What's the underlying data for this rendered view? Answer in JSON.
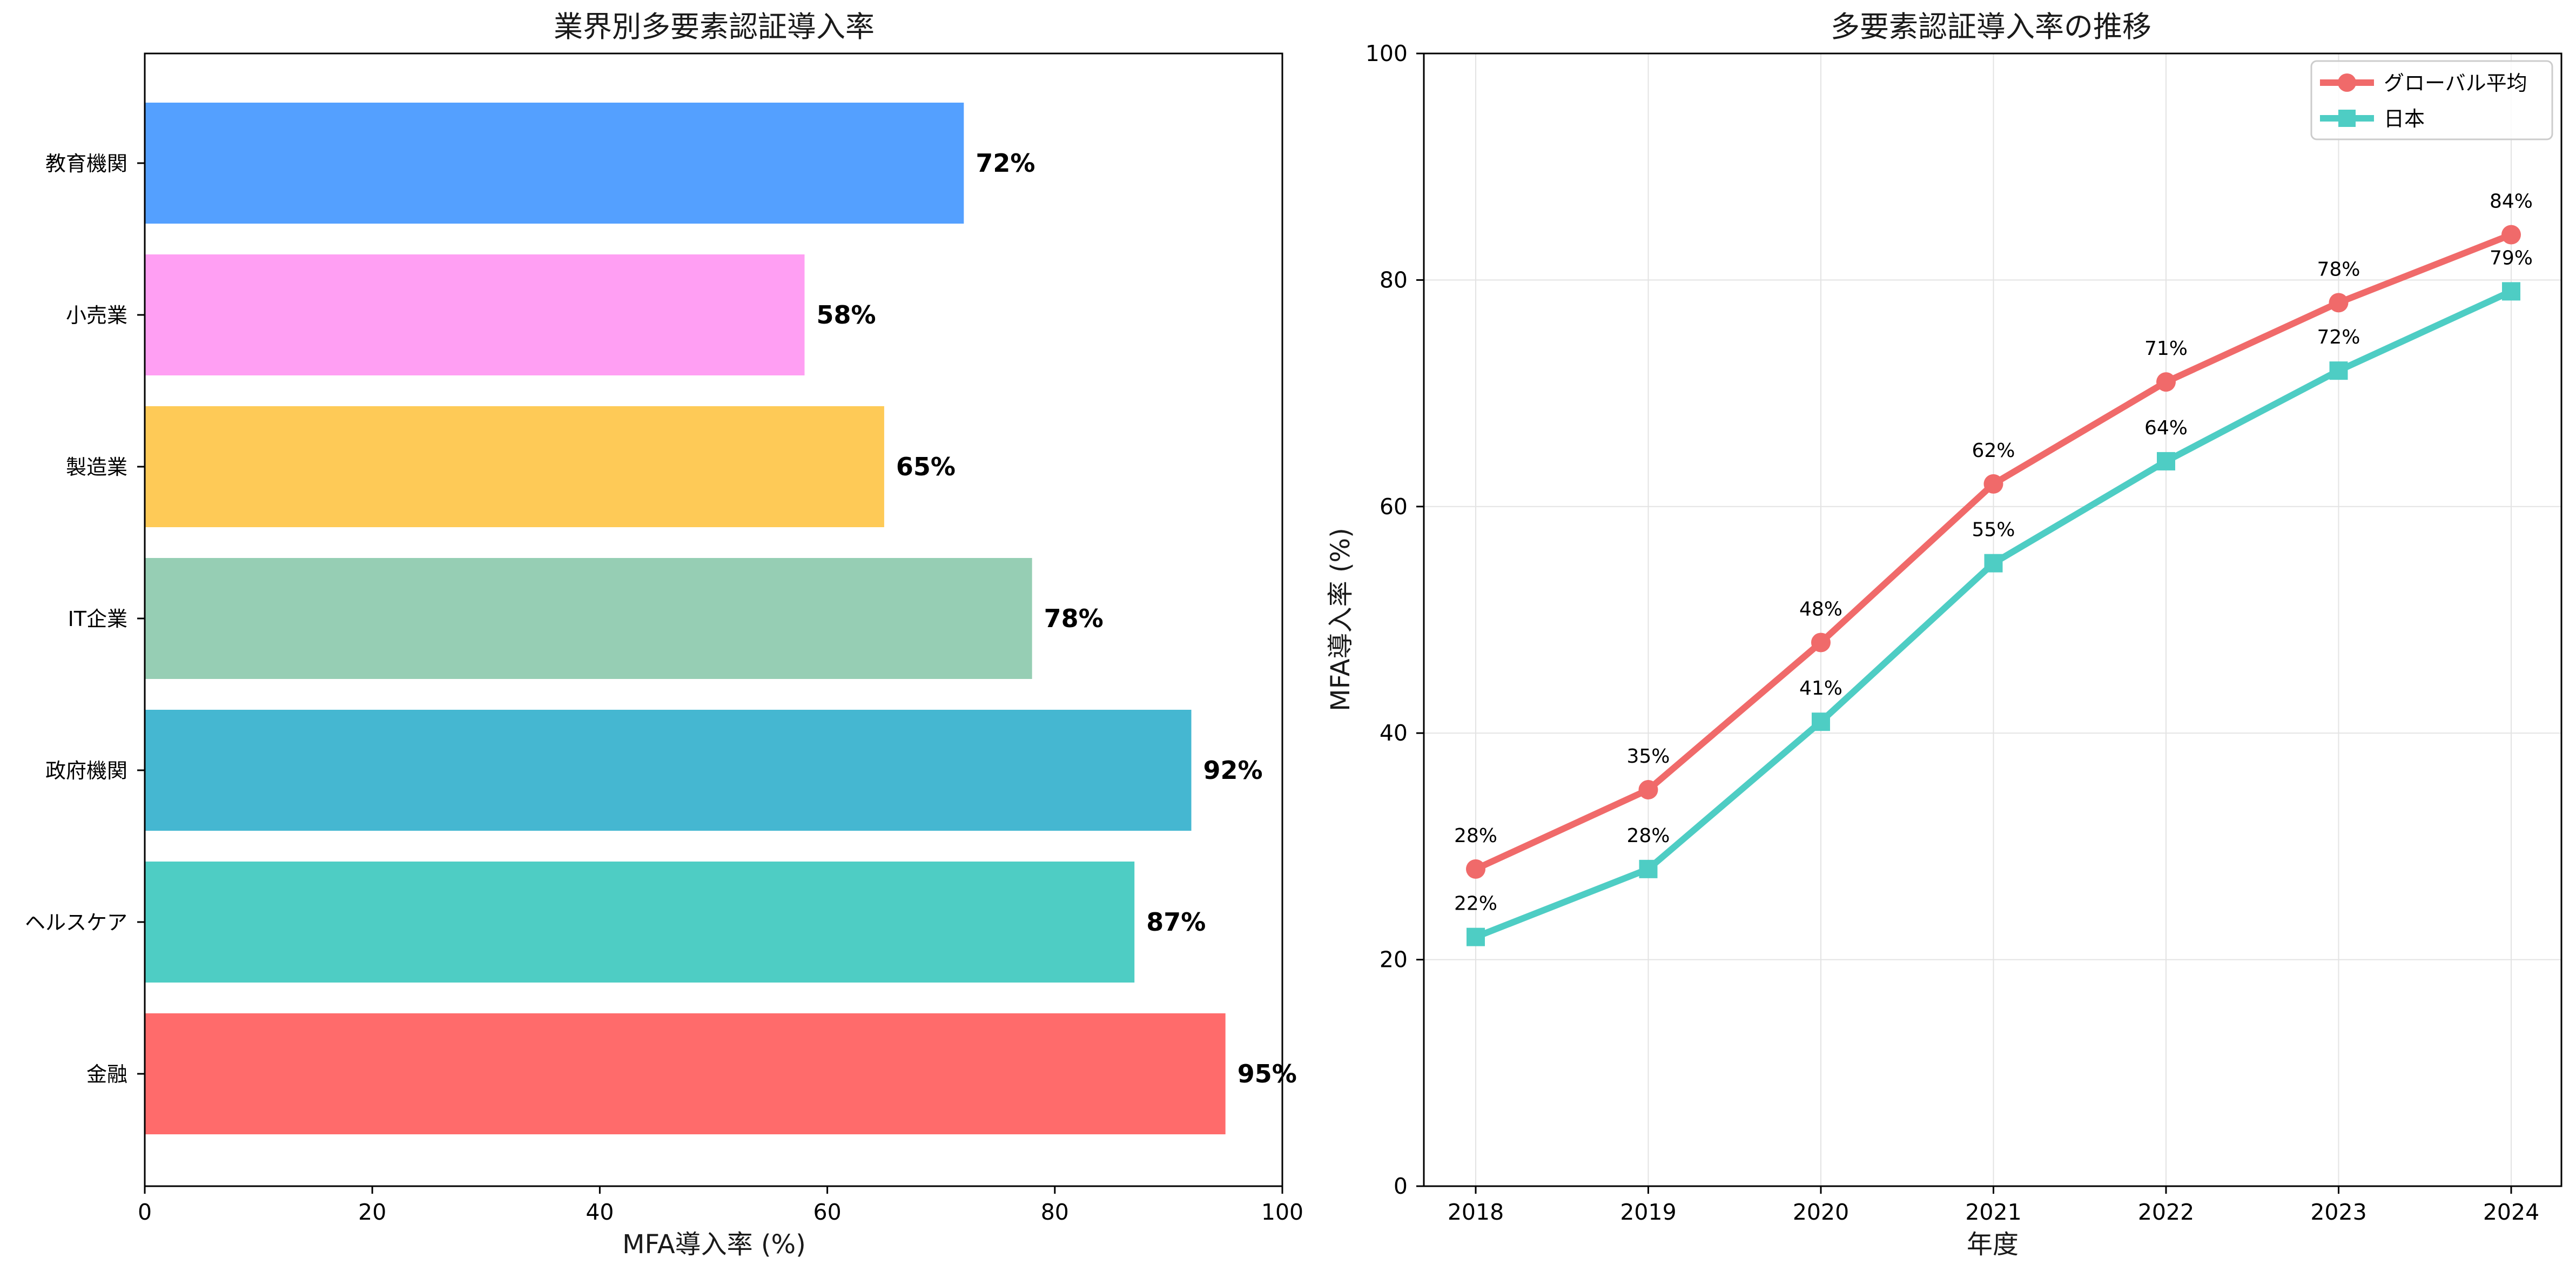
{
  "chart_data": [
    {
      "type": "bar",
      "orientation": "horizontal",
      "title": "業界別多要素認証導入率",
      "xlabel": "MFA導入率 (%)",
      "ylabel": "",
      "xlim": [
        0,
        100
      ],
      "xticks": [
        "0",
        "20",
        "40",
        "60",
        "80",
        "100"
      ],
      "categories": [
        "金融",
        "ヘルスケア",
        "政府機関",
        "IT企業",
        "製造業",
        "小売業",
        "教育機関"
      ],
      "values": [
        95,
        87,
        92,
        78,
        65,
        58,
        72
      ],
      "value_labels": [
        "95%",
        "87%",
        "92%",
        "78%",
        "65%",
        "58%",
        "72%"
      ],
      "colors": [
        "#FF6B6B",
        "#4ECDC4",
        "#45B7D1",
        "#96CEB4",
        "#FECA57",
        "#FF9FF3",
        "#54A0FF"
      ],
      "grid": false
    },
    {
      "type": "line",
      "title": "多要素認証導入率の推移",
      "xlabel": "年度",
      "ylabel": "MFA導入率 (%)",
      "ylim": [
        0,
        100
      ],
      "yticks": [
        "0",
        "20",
        "40",
        "60",
        "80",
        "100"
      ],
      "x": [
        "2018",
        "2019",
        "2020",
        "2021",
        "2022",
        "2023",
        "2024"
      ],
      "series": [
        {
          "name": "グローバル平均",
          "values": [
            28,
            35,
            48,
            62,
            71,
            78,
            84
          ],
          "labels": [
            "28%",
            "35%",
            "48%",
            "62%",
            "71%",
            "78%",
            "84%"
          ],
          "color": "#F06A6A",
          "marker": "circle"
        },
        {
          "name": "日本",
          "values": [
            22,
            28,
            41,
            55,
            64,
            72,
            79
          ],
          "labels": [
            "22%",
            "28%",
            "41%",
            "55%",
            "64%",
            "72%",
            "79%"
          ],
          "color": "#4ECDC4",
          "marker": "square"
        }
      ],
      "grid": true,
      "legend_position": "top-right"
    }
  ]
}
